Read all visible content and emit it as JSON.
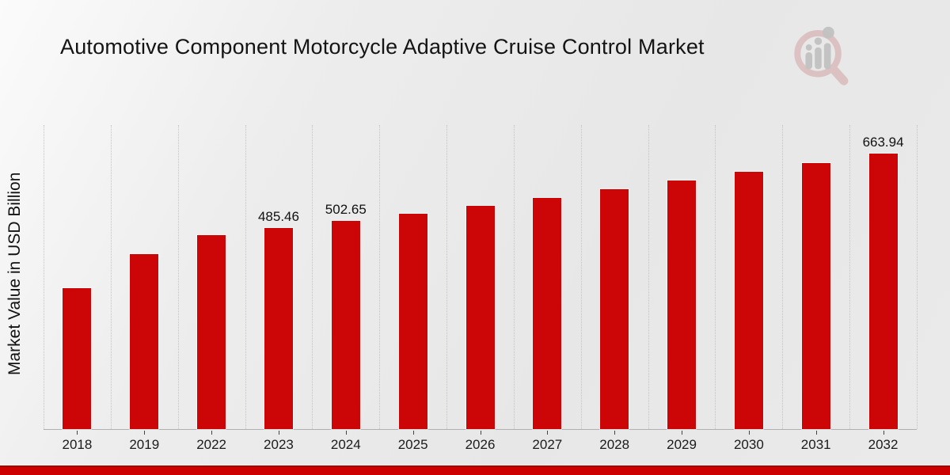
{
  "page": {
    "title": "Automotive Component Motorcycle Adaptive Cruise Control Market",
    "logo": "magnifier-bar-chart-logo"
  },
  "colors": {
    "bar": "#cc0606",
    "banner": "#cc0000",
    "banner_edge": "#9a0606",
    "gridline": "#c3c3c3",
    "axis_line": "#b0b0b0",
    "text": "#141414",
    "logo_ring": "#d6b0b0",
    "logo_bars": "#c6c6c6"
  },
  "chart_data": {
    "type": "bar",
    "title": "Automotive Component Motorcycle Adaptive Cruise Control Market",
    "xlabel": "",
    "ylabel": "Market Value in USD Billion",
    "categories": [
      "2018",
      "2019",
      "2022",
      "2023",
      "2024",
      "2025",
      "2026",
      "2027",
      "2028",
      "2029",
      "2030",
      "2031",
      "2032"
    ],
    "values": [
      339.9,
      421.9,
      467.7,
      485.46,
      502.65,
      519.2,
      538.9,
      557.9,
      578.4,
      599.4,
      619.8,
      642.0,
      663.94
    ],
    "point_labels": [
      null,
      null,
      null,
      "485.46",
      "502.65",
      null,
      null,
      null,
      null,
      null,
      null,
      null,
      "663.94"
    ],
    "ylim": [
      0,
      735
    ],
    "grid": "vertical dotted lines at category boundaries",
    "legend": "none",
    "bar_color": "#cc0606",
    "notes": "values for unlabeled bars estimated from bar heights; labeled values shown above 2023, 2024 and 2032 bars"
  }
}
